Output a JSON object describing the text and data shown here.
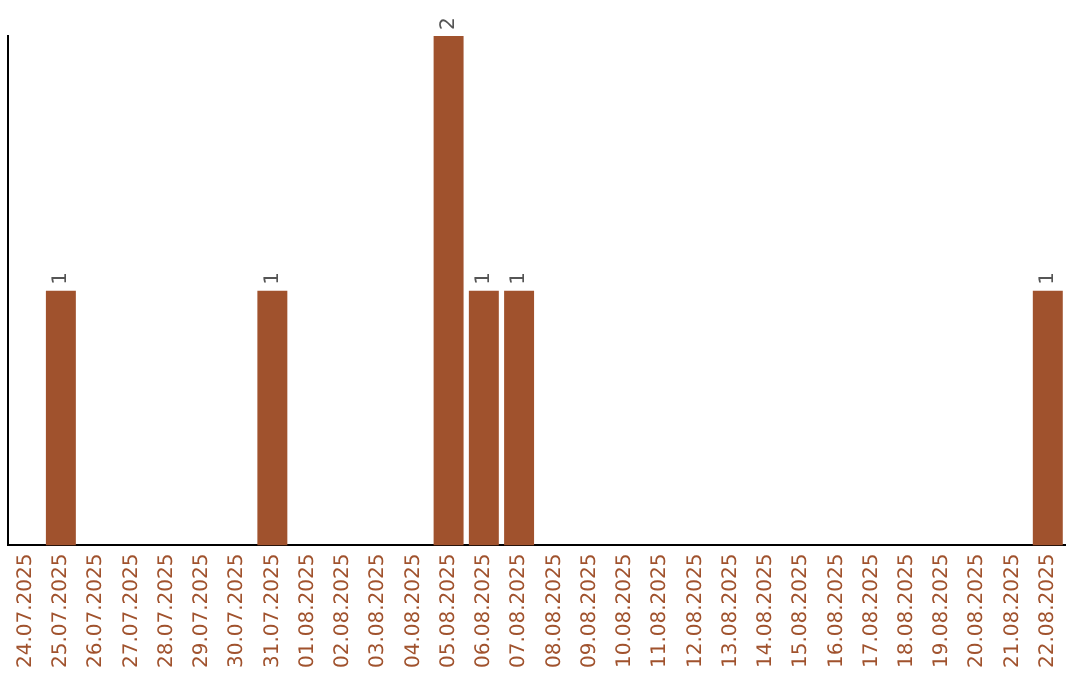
{
  "chart_data": {
    "type": "bar",
    "categories": [
      "24.07.2025",
      "25.07.2025",
      "26.07.2025",
      "27.07.2025",
      "28.07.2025",
      "29.07.2025",
      "30.07.2025",
      "31.07.2025",
      "01.08.2025",
      "02.08.2025",
      "03.08.2025",
      "04.08.2025",
      "05.08.2025",
      "06.08.2025",
      "07.08.2025",
      "08.08.2025",
      "09.08.2025",
      "10.08.2025",
      "11.08.2025",
      "12.08.2025",
      "13.08.2025",
      "14.08.2025",
      "15.08.2025",
      "16.08.2025",
      "17.08.2025",
      "18.08.2025",
      "19.08.2025",
      "20.08.2025",
      "21.08.2025",
      "22.08.2025"
    ],
    "values": [
      0,
      1,
      0,
      0,
      0,
      0,
      0,
      1,
      0,
      0,
      0,
      0,
      2,
      1,
      1,
      0,
      0,
      0,
      0,
      0,
      0,
      0,
      0,
      0,
      0,
      0,
      0,
      0,
      0,
      1
    ],
    "value_labels": [
      null,
      "1",
      null,
      null,
      null,
      null,
      null,
      "1",
      null,
      null,
      null,
      null,
      "2",
      "1",
      "1",
      null,
      null,
      null,
      null,
      null,
      null,
      null,
      null,
      null,
      null,
      null,
      null,
      null,
      null,
      "1"
    ],
    "color": "#a0522d",
    "ylim": [
      0,
      2
    ],
    "tick_labels": "x",
    "grid": false,
    "legend": false
  }
}
